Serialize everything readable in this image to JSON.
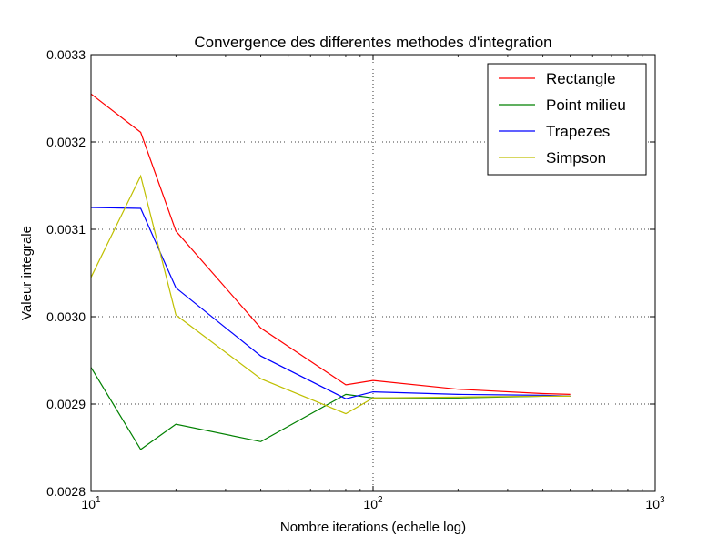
{
  "chart_data": {
    "type": "line",
    "title": "Convergence des differentes methodes d'integration",
    "xlabel": "Nombre iterations (echelle log)",
    "ylabel": "Valeur integrale",
    "xscale": "log",
    "xlim": [
      10,
      1000
    ],
    "ylim": [
      0.0028,
      0.0033
    ],
    "grid": "dotted",
    "legend_position": "top-right",
    "x_ticks": [
      {
        "value": 10,
        "base": "10",
        "exp": "1"
      },
      {
        "value": 100,
        "base": "10",
        "exp": "2"
      },
      {
        "value": 1000,
        "base": "10",
        "exp": "3"
      }
    ],
    "y_ticks": [
      {
        "value": 0.0028,
        "label": "0.0028"
      },
      {
        "value": 0.0029,
        "label": "0.0029"
      },
      {
        "value": 0.003,
        "label": "0.0030"
      },
      {
        "value": 0.0031,
        "label": "0.0031"
      },
      {
        "value": 0.0032,
        "label": "0.0032"
      },
      {
        "value": 0.0033,
        "label": "0.0033"
      }
    ],
    "x": [
      10,
      15,
      20,
      40,
      80,
      100,
      200,
      400,
      500
    ],
    "series": [
      {
        "name": "Rectangle",
        "color": "#ff0000",
        "values": [
          0.003255,
          0.003211,
          0.003098,
          0.002987,
          0.002922,
          0.002927,
          0.002917,
          0.002912,
          0.002911
        ]
      },
      {
        "name": "Point milieu",
        "color": "#008000",
        "values": [
          0.002942,
          0.002848,
          0.002877,
          0.002857,
          0.002911,
          0.002907,
          0.002907,
          0.002909,
          0.002909
        ]
      },
      {
        "name": "Trapezes",
        "color": "#0000ff",
        "values": [
          0.003125,
          0.003124,
          0.003033,
          0.002955,
          0.002906,
          0.002914,
          0.002911,
          0.00291,
          0.002909
        ]
      },
      {
        "name": "Simpson",
        "color": "#bfbf00",
        "values": [
          0.003045,
          0.003161,
          0.003002,
          0.002929,
          0.002889,
          0.002907,
          0.002908,
          0.002909,
          0.002909
        ]
      }
    ]
  }
}
